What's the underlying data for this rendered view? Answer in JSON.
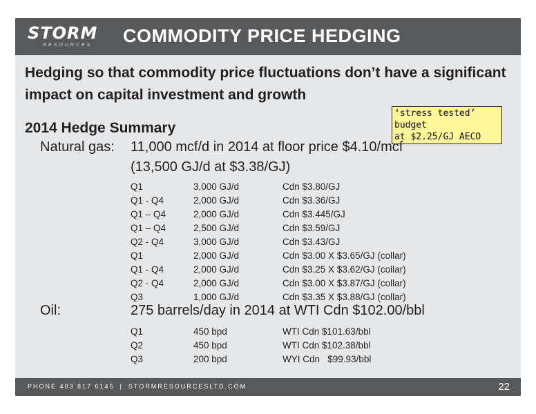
{
  "header": {
    "logo_main": "STORM",
    "logo_sub": "RESOURCES",
    "title": "COMMODITY PRICE HEDGING"
  },
  "lead": "Hedging so that commodity price fluctuations don’t have a significant impact on capital investment and growth",
  "callout": {
    "line1": "‘stress tested’ budget",
    "line2": "at $2.25/GJ AECO"
  },
  "summary_title": "2014 Hedge Summary",
  "gas": {
    "label": "Natural gas:",
    "line1": "11,000 mcf/d in 2014 at floor price $4.10/mcf",
    "line2": "(13,500 GJ/d at $3.38/GJ)",
    "rows": [
      {
        "period": "Q1",
        "volume": "3,000 GJ/d",
        "price": "Cdn $3.80/GJ"
      },
      {
        "period": "Q1 - Q4",
        "volume": "2,000 GJ/d",
        "price": "Cdn $3.36/GJ"
      },
      {
        "period": "Q1 – Q4",
        "volume": "2,000 GJ/d",
        "price": "Cdn $3.445/GJ"
      },
      {
        "period": "Q1 – Q4",
        "volume": "2,500 GJ/d",
        "price": "Cdn $3.59/GJ"
      },
      {
        "period": "Q2 - Q4",
        "volume": "3,000 GJ/d",
        "price": "Cdn $3.43/GJ"
      },
      {
        "period": "Q1",
        "volume": "2,000 GJ/d",
        "price": "Cdn $3.00 X $3.65/GJ (collar)"
      },
      {
        "period": "Q1 - Q4",
        "volume": "2,000 GJ/d",
        "price": "Cdn $3.25 X $3.62/GJ (collar)"
      },
      {
        "period": "Q2 - Q4",
        "volume": "2,000 GJ/d",
        "price": "Cdn $3.00 X $3.87/GJ (collar)"
      },
      {
        "period": "Q3",
        "volume": "1,000 GJ/d",
        "price": "Cdn $3.35 X $3.88/GJ (collar)"
      }
    ]
  },
  "oil": {
    "label": "Oil:",
    "line1": "275 barrels/day in 2014 at WTI Cdn $102.00/bbl",
    "rows": [
      {
        "period": "Q1",
        "volume": "450 bpd",
        "price": "WTI Cdn $101.63/bbl"
      },
      {
        "period": "Q2",
        "volume": "450 bpd",
        "price": "WTI Cdn $102.38/bbl"
      },
      {
        "period": "Q3",
        "volume": "200 bpd",
        "price": "WYI Cdn   $99.93/bbl"
      }
    ]
  },
  "footer": {
    "phone": "PHONE 403 817 6145",
    "separator": "|",
    "website": "STORMRESOURCESLTD.COM",
    "page_number": "22"
  }
}
